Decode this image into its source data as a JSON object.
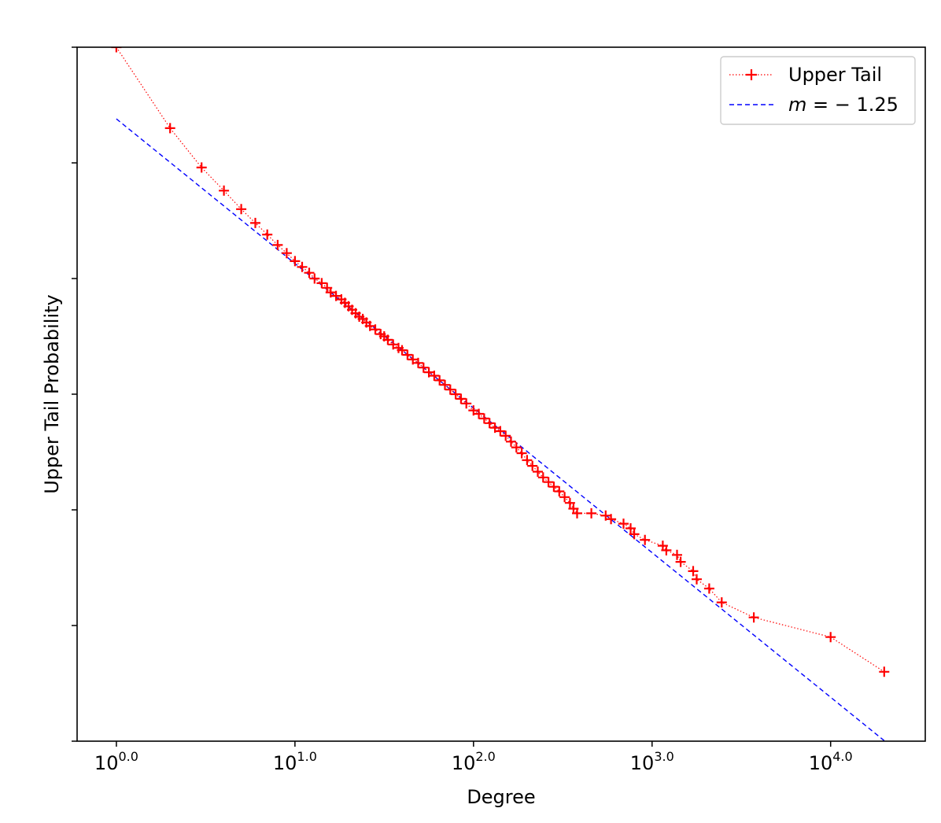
{
  "chart_data": {
    "type": "scatter",
    "xlabel": "Degree",
    "ylabel": "Upper Tail Probability",
    "x_scale": "log10",
    "x_range_log10": [
      -0.22,
      4.53
    ],
    "y_range_log10": [
      -6.0,
      0.0
    ],
    "x_tick_labels": [
      {
        "base": "10",
        "exp": "0.0",
        "log10": 0
      },
      {
        "base": "10",
        "exp": "1.0",
        "log10": 1
      },
      {
        "base": "10",
        "exp": "2.0",
        "log10": 2
      },
      {
        "base": "10",
        "exp": "3.0",
        "log10": 3
      },
      {
        "base": "10",
        "exp": "4.0",
        "log10": 4
      }
    ],
    "y_ticks_log10": [
      0,
      -1,
      -2,
      -3,
      -4,
      -5,
      -6
    ],
    "legend": {
      "position": "top-right",
      "entries": [
        {
          "label": "Upper Tail",
          "style": "marker-plus-dotted-line",
          "color": "#ff0000"
        },
        {
          "label_prefix": "m",
          "label_suffix": " = − 1.25",
          "style": "dashed-line",
          "color": "#0000ff"
        }
      ]
    },
    "series": [
      {
        "name": "Upper Tail",
        "color": "#ff0000",
        "points_log10": [
          [
            0.0,
            0.0
          ],
          [
            0.301,
            -0.7
          ],
          [
            0.477,
            -1.04
          ],
          [
            0.602,
            -1.24
          ],
          [
            0.699,
            -1.4
          ],
          [
            0.778,
            -1.52
          ],
          [
            0.845,
            -1.62
          ],
          [
            0.903,
            -1.71
          ],
          [
            0.954,
            -1.78
          ],
          [
            1.0,
            -1.85
          ],
          [
            1.04,
            -1.9
          ],
          [
            1.08,
            -1.95
          ],
          [
            1.11,
            -2.0
          ],
          [
            1.15,
            -2.04
          ],
          [
            1.18,
            -2.08
          ],
          [
            1.2,
            -2.12
          ],
          [
            1.23,
            -2.15
          ],
          [
            1.26,
            -2.18
          ],
          [
            1.28,
            -2.21
          ],
          [
            1.3,
            -2.24
          ],
          [
            1.32,
            -2.27
          ],
          [
            1.34,
            -2.3
          ],
          [
            1.36,
            -2.33
          ],
          [
            1.38,
            -2.35
          ],
          [
            1.4,
            -2.38
          ],
          [
            1.42,
            -2.41
          ],
          [
            1.45,
            -2.44
          ],
          [
            1.48,
            -2.48
          ],
          [
            1.5,
            -2.5
          ],
          [
            1.52,
            -2.53
          ],
          [
            1.55,
            -2.57
          ],
          [
            1.58,
            -2.6
          ],
          [
            1.6,
            -2.62
          ],
          [
            1.63,
            -2.66
          ],
          [
            1.66,
            -2.7
          ],
          [
            1.69,
            -2.73
          ],
          [
            1.72,
            -2.77
          ],
          [
            1.75,
            -2.81
          ],
          [
            1.78,
            -2.84
          ],
          [
            1.81,
            -2.88
          ],
          [
            1.84,
            -2.92
          ],
          [
            1.87,
            -2.96
          ],
          [
            1.9,
            -3.0
          ],
          [
            1.93,
            -3.04
          ],
          [
            1.96,
            -3.08
          ],
          [
            2.0,
            -3.14
          ],
          [
            2.03,
            -3.17
          ],
          [
            2.06,
            -3.21
          ],
          [
            2.09,
            -3.25
          ],
          [
            2.12,
            -3.29
          ],
          [
            2.15,
            -3.32
          ],
          [
            2.18,
            -3.36
          ],
          [
            2.21,
            -3.41
          ],
          [
            2.24,
            -3.46
          ],
          [
            2.27,
            -3.51
          ],
          [
            2.3,
            -3.57
          ],
          [
            2.33,
            -3.62
          ],
          [
            2.36,
            -3.67
          ],
          [
            2.39,
            -3.72
          ],
          [
            2.42,
            -3.76
          ],
          [
            2.45,
            -3.8
          ],
          [
            2.48,
            -3.84
          ],
          [
            2.51,
            -3.89
          ],
          [
            2.54,
            -3.94
          ],
          [
            2.56,
            -3.99
          ],
          [
            2.58,
            -4.03
          ],
          [
            2.66,
            -4.03
          ],
          [
            2.74,
            -4.05
          ],
          [
            2.77,
            -4.08
          ],
          [
            2.84,
            -4.12
          ],
          [
            2.88,
            -4.16
          ],
          [
            2.9,
            -4.21
          ],
          [
            2.96,
            -4.26
          ],
          [
            3.06,
            -4.31
          ],
          [
            3.08,
            -4.35
          ],
          [
            3.14,
            -4.39
          ],
          [
            3.16,
            -4.45
          ],
          [
            3.23,
            -4.53
          ],
          [
            3.25,
            -4.6
          ],
          [
            3.32,
            -4.68
          ],
          [
            3.39,
            -4.8
          ],
          [
            3.57,
            -4.93
          ],
          [
            4.0,
            -5.1
          ],
          [
            4.3,
            -5.4
          ]
        ]
      },
      {
        "name": "m = −1.25",
        "color": "#0000ff",
        "points_log10": [
          [
            0.0,
            -0.62
          ],
          [
            4.3,
            -5.995
          ]
        ]
      }
    ]
  }
}
